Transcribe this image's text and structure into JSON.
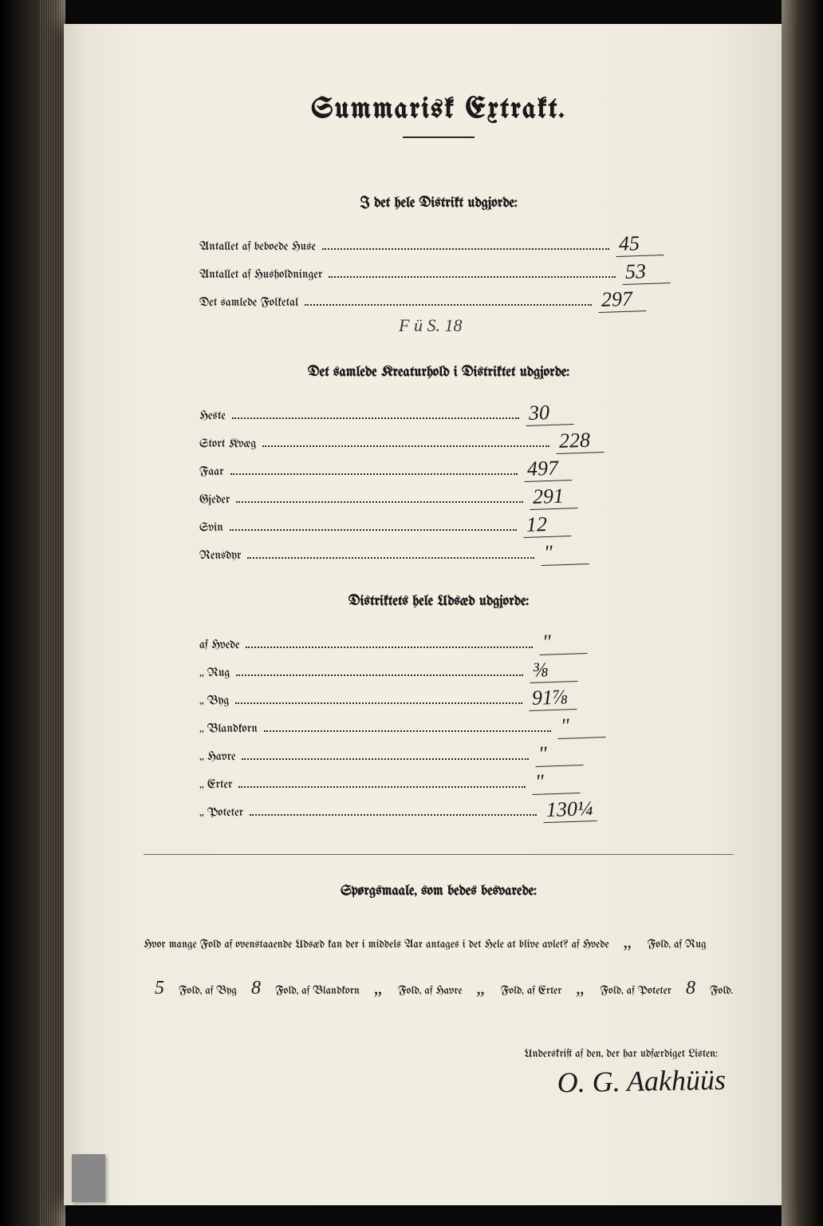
{
  "colors": {
    "paper": "#f0ece0",
    "ink": "#1a1a1a",
    "handwriting": "#1a1a1a",
    "binding_dark": "#0a0a0a"
  },
  "title": "Summarisk Extrakt.",
  "section1": {
    "heading": "I det hele Distrikt udgjorde:",
    "rows": [
      {
        "label": "Antallet af beboede Huse",
        "value": "45"
      },
      {
        "label": "Antallet af Husholdninger",
        "value": "53"
      },
      {
        "label": "Det samlede Folketal",
        "value": "297"
      }
    ],
    "annotation": "F ü   S. 18"
  },
  "section2": {
    "heading": "Det samlede Kreaturhold i Distriktet udgjorde:",
    "rows": [
      {
        "label": "Heste",
        "value": "30"
      },
      {
        "label": "Stort Kvæg",
        "value": "228"
      },
      {
        "label": "Faar",
        "value": "497"
      },
      {
        "label": "Gjeder",
        "value": "291"
      },
      {
        "label": "Svin",
        "value": "12"
      },
      {
        "label": "Rensdyr",
        "value": "\""
      }
    ]
  },
  "section3": {
    "heading": "Distriktets hele Udsæd udgjorde:",
    "rows": [
      {
        "label": "af Hvede",
        "value": "\""
      },
      {
        "label": "„ Rug",
        "value": "⅜"
      },
      {
        "label": "„ Byg",
        "value": "91⅞"
      },
      {
        "label": "„ Blandkorn",
        "value": "\""
      },
      {
        "label": "„ Havre",
        "value": "\""
      },
      {
        "label": "„ Erter",
        "value": "\""
      },
      {
        "label": "„ Poteter",
        "value": "130¼"
      }
    ]
  },
  "section4": {
    "heading": "Spørgsmaale, som bedes besvarede:",
    "question_parts": {
      "p1": "Hvor mange Fold af ovenstaaende Udsæd kan der i middels Aar antages i det Hele at blive avlet? af Hvede",
      "p2": "Fold,",
      "p3": "af Rug",
      "p4": "Fold, af Byg",
      "p5": "Fold, af Blandkorn",
      "p6": "Fold, af Havre",
      "p7": "Fold, af Erter",
      "p8": "Fold,",
      "p9": "af Poteter",
      "p10": "Fold."
    },
    "answers": {
      "hvede": "„",
      "rug": "5",
      "byg": "8",
      "blandkorn": "„",
      "havre": "„",
      "erter": "„",
      "poteter": "8"
    }
  },
  "signature": {
    "label": "Underskrift af den, der har udfærdiget Listen:",
    "name": "O. G. Aakhüüs"
  }
}
